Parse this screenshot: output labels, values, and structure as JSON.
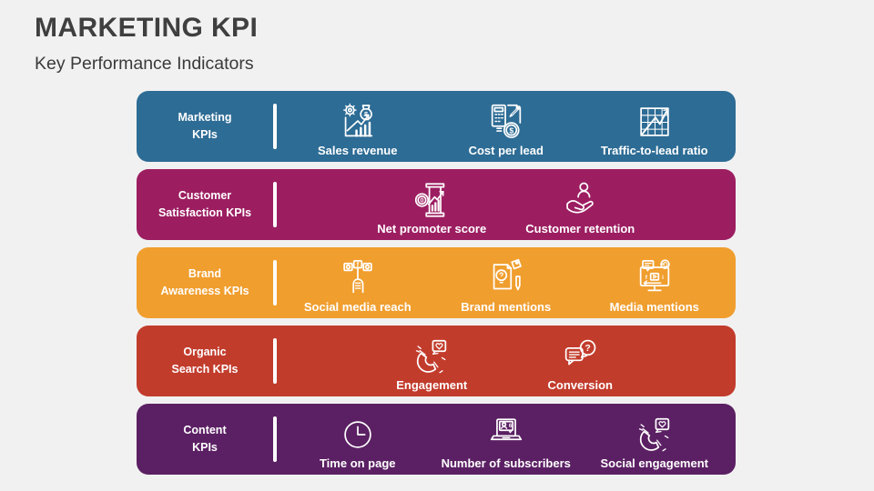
{
  "slide": {
    "title": "MARKETING KPI",
    "subtitle": "Key Performance Indicators",
    "background_color": "#f1f1f1",
    "title_color": "#3f3f3f",
    "text_color": "#ffffff"
  },
  "rows": [
    {
      "id": "marketing",
      "label": "Marketing\nKPIs",
      "color": "#2D6C95",
      "items": [
        {
          "label": "Sales revenue",
          "icon": "sales-revenue-icon"
        },
        {
          "label": "Cost per lead",
          "icon": "cost-per-lead-icon"
        },
        {
          "label": "Traffic-to-lead ratio",
          "icon": "traffic-to-lead-ratio-icon"
        }
      ]
    },
    {
      "id": "customer-satisfaction",
      "label": "Customer\nSatisfaction KPIs",
      "color": "#9C1E61",
      "items": [
        {
          "label": "Net promoter score",
          "icon": "net-promoter-score-icon"
        },
        {
          "label": "Customer retention",
          "icon": "customer-retention-icon"
        }
      ]
    },
    {
      "id": "brand-awareness",
      "label": "Brand\nAwareness KPIs",
      "color": "#F09E2E",
      "items": [
        {
          "label": "Social media reach",
          "icon": "social-media-reach-icon"
        },
        {
          "label": "Brand mentions",
          "icon": "brand-mentions-icon"
        },
        {
          "label": "Media mentions",
          "icon": "media-mentions-icon"
        }
      ]
    },
    {
      "id": "organic-search",
      "label": "Organic\nSearch KPIs",
      "color": "#C23C2C",
      "items": [
        {
          "label": "Engagement",
          "icon": "engagement-icon"
        },
        {
          "label": "Conversion",
          "icon": "conversion-icon"
        }
      ]
    },
    {
      "id": "content",
      "label": "Content\nKPIs",
      "color": "#5B2063",
      "items": [
        {
          "label": "Time on page",
          "icon": "time-on-page-icon"
        },
        {
          "label": "Number of subscribers",
          "icon": "number-of-subscribers-icon"
        },
        {
          "label": "Social engagement",
          "icon": "social-engagement-icon"
        }
      ]
    }
  ]
}
